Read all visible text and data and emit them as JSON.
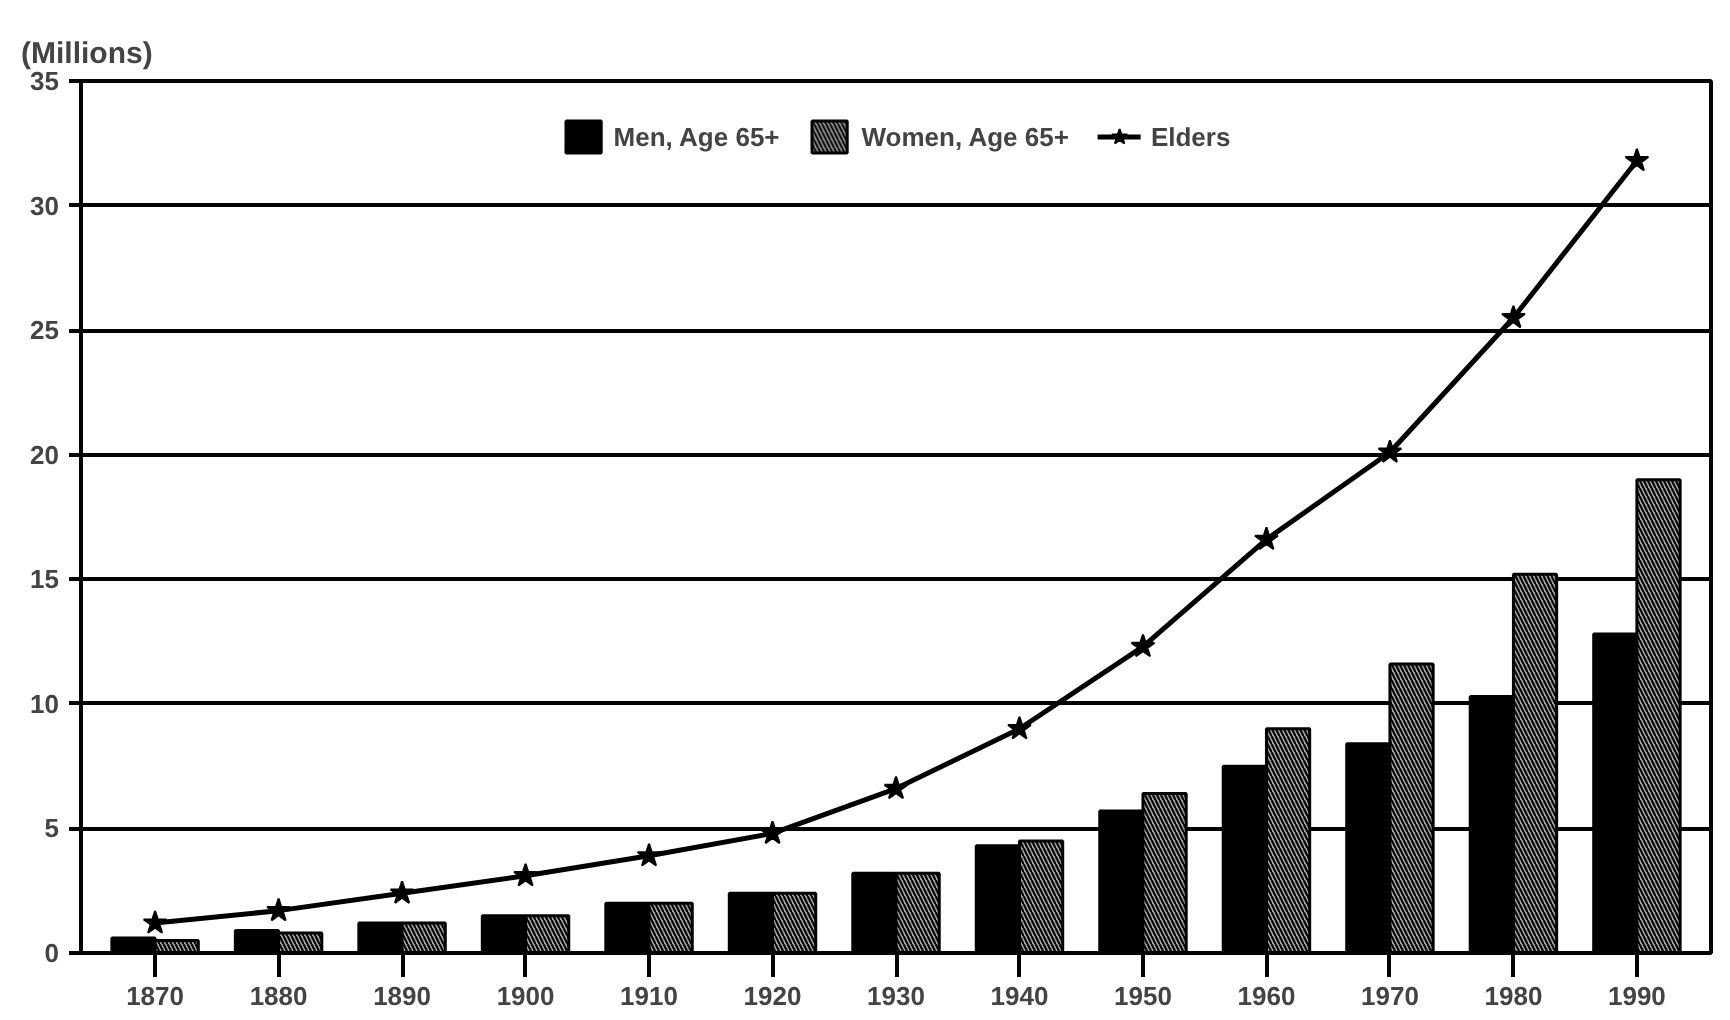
{
  "chart_data": {
    "type": "bar",
    "ylabel": "(Millions)",
    "categories": [
      "1870",
      "1880",
      "1890",
      "1900",
      "1910",
      "1920",
      "1930",
      "1940",
      "1950",
      "1960",
      "1970",
      "1980",
      "1990"
    ],
    "series": [
      {
        "name": "Men, Age 65+",
        "color": "#000000",
        "values": [
          0.6,
          0.9,
          1.2,
          1.5,
          2.0,
          2.4,
          3.2,
          4.3,
          5.7,
          7.5,
          8.4,
          10.3,
          12.8
        ]
      },
      {
        "name": "Women, Age 65+",
        "color": "#a0a0a0",
        "values": [
          0.5,
          0.8,
          1.2,
          1.5,
          2.0,
          2.4,
          3.2,
          4.5,
          6.4,
          9.0,
          11.6,
          15.2,
          19.0
        ]
      },
      {
        "name": "Elders",
        "type": "line",
        "color": "#000000",
        "marker": "star",
        "values": [
          1.2,
          1.7,
          2.4,
          3.1,
          3.9,
          4.8,
          6.6,
          9.0,
          12.3,
          16.6,
          20.1,
          25.5,
          31.8
        ]
      }
    ],
    "ylim": [
      0,
      35
    ],
    "yticks": [
      0,
      5,
      10,
      15,
      20,
      25,
      30,
      35
    ],
    "grid": "y",
    "legend": "top"
  }
}
